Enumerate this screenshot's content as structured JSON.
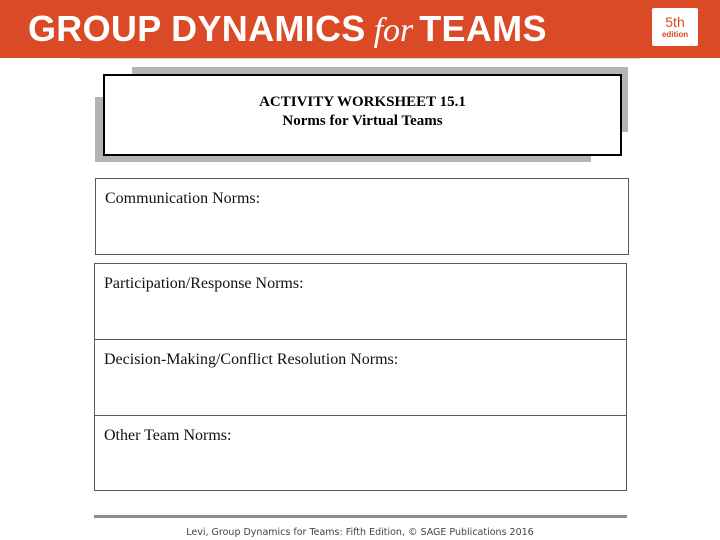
{
  "header": {
    "title_part1": "GROUP DYNAMICS",
    "title_part2": "for",
    "title_part3": "TEAMS",
    "edition_number": "5th",
    "edition_word": "edition",
    "colors": {
      "banner": "#db4a26",
      "text": "#ffffff"
    }
  },
  "worksheet": {
    "heading": "ACTIVITY WORKSHEET 15.1",
    "subheading": "Norms for Virtual Teams"
  },
  "sections": {
    "communication": "Communication Norms:",
    "participation": "Participation/Response Norms:",
    "decision": "Decision-Making/Conflict Resolution Norms:",
    "other": "Other Team Norms:"
  },
  "footer": {
    "citation": "Levi, Group Dynamics for Teams: Fifth Edition, © SAGE Publications 2016"
  }
}
